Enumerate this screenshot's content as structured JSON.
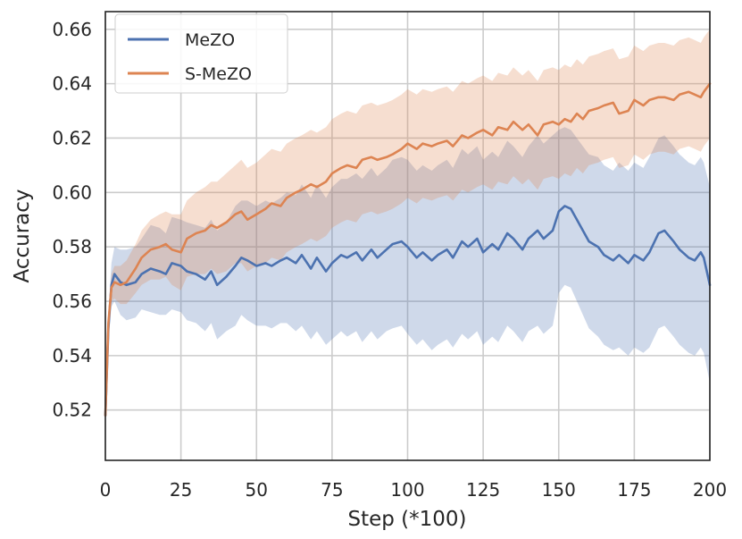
{
  "chart_data": {
    "type": "line",
    "title": "",
    "xlabel": "Step (*100)",
    "ylabel": "Accuracy",
    "xlim": [
      0,
      200
    ],
    "ylim": [
      0.5015,
      0.6665
    ],
    "xticks": [
      0,
      25,
      50,
      75,
      100,
      125,
      150,
      175,
      200
    ],
    "yticks": [
      0.52,
      0.54,
      0.56,
      0.58,
      0.6,
      0.62,
      0.64,
      0.66
    ],
    "xtick_labels": [
      "0",
      "25",
      "50",
      "75",
      "100",
      "125",
      "150",
      "175",
      "200"
    ],
    "ytick_labels": [
      "0.52",
      "0.54",
      "0.56",
      "0.58",
      "0.60",
      "0.62",
      "0.64",
      "0.66"
    ],
    "grid": true,
    "legend_position": "top-left",
    "series": [
      {
        "name": "MeZO",
        "color": "#4c72b0",
        "x": [
          0,
          1,
          2,
          3,
          5,
          7,
          10,
          12,
          15,
          18,
          20,
          22,
          25,
          27,
          30,
          33,
          35,
          37,
          40,
          43,
          45,
          47,
          50,
          53,
          55,
          58,
          60,
          63,
          65,
          68,
          70,
          73,
          75,
          78,
          80,
          83,
          85,
          88,
          90,
          93,
          95,
          98,
          100,
          103,
          105,
          108,
          110,
          113,
          115,
          118,
          120,
          123,
          125,
          128,
          130,
          133,
          135,
          138,
          140,
          143,
          145,
          148,
          150,
          152,
          154,
          156,
          158,
          160,
          163,
          165,
          168,
          170,
          173,
          175,
          178,
          180,
          183,
          185,
          188,
          190,
          193,
          195,
          197,
          198,
          200
        ],
        "y": [
          0.518,
          0.55,
          0.566,
          0.57,
          0.567,
          0.566,
          0.567,
          0.57,
          0.572,
          0.571,
          0.57,
          0.574,
          0.573,
          0.571,
          0.57,
          0.568,
          0.571,
          0.566,
          0.569,
          0.573,
          0.576,
          0.575,
          0.573,
          0.574,
          0.573,
          0.575,
          0.576,
          0.574,
          0.577,
          0.572,
          0.576,
          0.571,
          0.574,
          0.577,
          0.576,
          0.578,
          0.575,
          0.579,
          0.576,
          0.579,
          0.581,
          0.582,
          0.58,
          0.576,
          0.578,
          0.575,
          0.577,
          0.579,
          0.576,
          0.582,
          0.58,
          0.583,
          0.578,
          0.581,
          0.579,
          0.585,
          0.583,
          0.579,
          0.583,
          0.586,
          0.583,
          0.586,
          0.593,
          0.595,
          0.594,
          0.59,
          0.586,
          0.582,
          0.58,
          0.577,
          0.575,
          0.577,
          0.574,
          0.577,
          0.575,
          0.578,
          0.585,
          0.586,
          0.582,
          0.579,
          0.576,
          0.575,
          0.578,
          0.576,
          0.566
        ],
        "lower": [
          0.515,
          0.545,
          0.558,
          0.56,
          0.555,
          0.553,
          0.554,
          0.557,
          0.556,
          0.555,
          0.555,
          0.557,
          0.556,
          0.553,
          0.552,
          0.549,
          0.552,
          0.546,
          0.549,
          0.551,
          0.555,
          0.553,
          0.551,
          0.551,
          0.55,
          0.552,
          0.552,
          0.549,
          0.551,
          0.546,
          0.549,
          0.544,
          0.546,
          0.549,
          0.547,
          0.549,
          0.545,
          0.549,
          0.546,
          0.549,
          0.55,
          0.551,
          0.548,
          0.544,
          0.546,
          0.542,
          0.544,
          0.546,
          0.543,
          0.548,
          0.546,
          0.549,
          0.544,
          0.547,
          0.545,
          0.551,
          0.549,
          0.545,
          0.549,
          0.551,
          0.548,
          0.551,
          0.563,
          0.566,
          0.565,
          0.56,
          0.555,
          0.55,
          0.547,
          0.544,
          0.542,
          0.543,
          0.54,
          0.543,
          0.541,
          0.543,
          0.55,
          0.551,
          0.547,
          0.544,
          0.541,
          0.54,
          0.543,
          0.541,
          0.53
        ],
        "upper": [
          0.521,
          0.555,
          0.574,
          0.58,
          0.579,
          0.579,
          0.58,
          0.583,
          0.588,
          0.587,
          0.585,
          0.591,
          0.59,
          0.589,
          0.588,
          0.587,
          0.59,
          0.586,
          0.589,
          0.595,
          0.597,
          0.597,
          0.595,
          0.597,
          0.596,
          0.598,
          0.6,
          0.599,
          0.603,
          0.598,
          0.603,
          0.598,
          0.602,
          0.605,
          0.605,
          0.607,
          0.605,
          0.609,
          0.606,
          0.609,
          0.612,
          0.613,
          0.612,
          0.608,
          0.61,
          0.608,
          0.61,
          0.612,
          0.609,
          0.616,
          0.614,
          0.617,
          0.612,
          0.615,
          0.613,
          0.619,
          0.617,
          0.613,
          0.617,
          0.621,
          0.618,
          0.621,
          0.623,
          0.624,
          0.623,
          0.62,
          0.617,
          0.614,
          0.613,
          0.61,
          0.608,
          0.611,
          0.608,
          0.611,
          0.609,
          0.613,
          0.62,
          0.621,
          0.617,
          0.614,
          0.611,
          0.61,
          0.613,
          0.611,
          0.602
        ]
      },
      {
        "name": "S-MeZO",
        "color": "#dd8452",
        "x": [
          0,
          1,
          2,
          3,
          5,
          7,
          10,
          12,
          15,
          18,
          20,
          22,
          25,
          27,
          30,
          33,
          35,
          37,
          40,
          43,
          45,
          47,
          50,
          53,
          55,
          58,
          60,
          63,
          65,
          68,
          70,
          73,
          75,
          78,
          80,
          83,
          85,
          88,
          90,
          93,
          95,
          98,
          100,
          103,
          105,
          108,
          110,
          113,
          115,
          118,
          120,
          123,
          125,
          128,
          130,
          133,
          135,
          138,
          140,
          143,
          145,
          148,
          150,
          152,
          154,
          156,
          158,
          160,
          163,
          165,
          168,
          170,
          173,
          175,
          178,
          180,
          183,
          185,
          188,
          190,
          193,
          195,
          197,
          198,
          200
        ],
        "y": [
          0.518,
          0.552,
          0.565,
          0.567,
          0.566,
          0.567,
          0.572,
          0.576,
          0.579,
          0.58,
          0.581,
          0.579,
          0.578,
          0.583,
          0.585,
          0.586,
          0.588,
          0.587,
          0.589,
          0.592,
          0.593,
          0.59,
          0.592,
          0.594,
          0.596,
          0.595,
          0.598,
          0.6,
          0.601,
          0.603,
          0.602,
          0.604,
          0.607,
          0.609,
          0.61,
          0.609,
          0.612,
          0.613,
          0.612,
          0.613,
          0.614,
          0.616,
          0.618,
          0.616,
          0.618,
          0.617,
          0.618,
          0.619,
          0.617,
          0.621,
          0.62,
          0.622,
          0.623,
          0.621,
          0.624,
          0.623,
          0.626,
          0.623,
          0.625,
          0.621,
          0.625,
          0.626,
          0.625,
          0.627,
          0.626,
          0.629,
          0.627,
          0.63,
          0.631,
          0.632,
          0.633,
          0.629,
          0.63,
          0.634,
          0.632,
          0.634,
          0.635,
          0.635,
          0.634,
          0.636,
          0.637,
          0.636,
          0.635,
          0.637,
          0.64
        ],
        "lower": [
          0.515,
          0.547,
          0.56,
          0.561,
          0.559,
          0.559,
          0.563,
          0.566,
          0.568,
          0.568,
          0.569,
          0.566,
          0.564,
          0.569,
          0.57,
          0.57,
          0.572,
          0.57,
          0.571,
          0.574,
          0.574,
          0.571,
          0.573,
          0.574,
          0.576,
          0.575,
          0.578,
          0.58,
          0.581,
          0.583,
          0.582,
          0.584,
          0.587,
          0.589,
          0.59,
          0.589,
          0.592,
          0.593,
          0.592,
          0.593,
          0.594,
          0.596,
          0.598,
          0.596,
          0.598,
          0.597,
          0.598,
          0.599,
          0.597,
          0.601,
          0.6,
          0.602,
          0.603,
          0.601,
          0.604,
          0.603,
          0.606,
          0.603,
          0.605,
          0.601,
          0.605,
          0.606,
          0.605,
          0.607,
          0.606,
          0.609,
          0.607,
          0.61,
          0.611,
          0.612,
          0.613,
          0.609,
          0.61,
          0.614,
          0.612,
          0.614,
          0.615,
          0.615,
          0.614,
          0.616,
          0.617,
          0.616,
          0.615,
          0.617,
          0.62
        ],
        "upper": [
          0.521,
          0.557,
          0.57,
          0.573,
          0.573,
          0.575,
          0.581,
          0.586,
          0.59,
          0.592,
          0.593,
          0.592,
          0.592,
          0.597,
          0.6,
          0.602,
          0.604,
          0.604,
          0.607,
          0.61,
          0.612,
          0.609,
          0.611,
          0.614,
          0.616,
          0.615,
          0.618,
          0.62,
          0.621,
          0.623,
          0.622,
          0.624,
          0.627,
          0.629,
          0.63,
          0.629,
          0.632,
          0.633,
          0.632,
          0.633,
          0.634,
          0.636,
          0.638,
          0.636,
          0.638,
          0.637,
          0.638,
          0.639,
          0.637,
          0.641,
          0.64,
          0.642,
          0.643,
          0.641,
          0.644,
          0.643,
          0.646,
          0.643,
          0.645,
          0.641,
          0.645,
          0.646,
          0.645,
          0.647,
          0.646,
          0.649,
          0.647,
          0.65,
          0.651,
          0.652,
          0.653,
          0.649,
          0.65,
          0.654,
          0.652,
          0.654,
          0.655,
          0.655,
          0.654,
          0.656,
          0.657,
          0.656,
          0.655,
          0.657,
          0.66
        ]
      }
    ]
  }
}
